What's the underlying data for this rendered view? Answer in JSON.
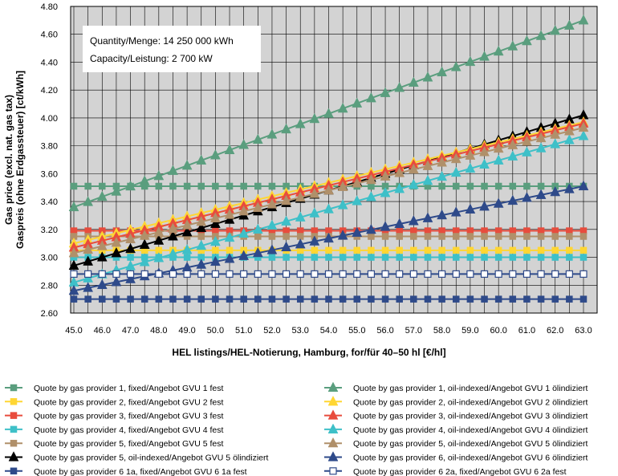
{
  "chart_data": {
    "type": "line",
    "title": "",
    "xlabel": "HEL listings/HEL-Notierung, Hamburg, for/für 40–50 hl [€/hl]",
    "ylabel_line1": "Gas price (excl. nat. gas tax)",
    "ylabel_line2": "Gaspreis (ohne Erdgassteuer) [ct/kWh]",
    "xlim": [
      45.0,
      63.0
    ],
    "ylim": [
      2.6,
      4.8
    ],
    "x_ticks": [
      "45.0",
      "46.0",
      "47.0",
      "48.0",
      "49.0",
      "50.0",
      "51.0",
      "52.0",
      "53.0",
      "54.0",
      "55.0",
      "56.0",
      "57.0",
      "58.0",
      "59.0",
      "60.0",
      "61.0",
      "62.0",
      "63.0"
    ],
    "y_ticks": [
      "2.60",
      "2.80",
      "3.00",
      "3.20",
      "3.40",
      "3.60",
      "3.80",
      "4.00",
      "4.20",
      "4.40",
      "4.60",
      "4.80"
    ],
    "x_step": 0.5,
    "grid": true,
    "info_box": {
      "quantity": "Quantity/Menge: 14 250 000 kWh",
      "capacity": "Capacity/Leistung: 2 700 kW"
    },
    "series": [
      {
        "name": "Quote by gas provider 1, fixed/Angebot GVU 1 fest",
        "color": "#5a9e7e",
        "marker": "square",
        "start": 3.51,
        "end": 3.51
      },
      {
        "name": "Quote by gas provider 2, fixed/Angebot GVU 2 fest",
        "color": "#ffd633",
        "marker": "square",
        "start": 3.05,
        "end": 3.05
      },
      {
        "name": "Quote by gas provider 3, fixed/Angebot GVU 3 fest",
        "color": "#e84c3d",
        "marker": "square",
        "start": 3.19,
        "end": 3.19
      },
      {
        "name": "Quote by gas provider 4, fixed/Angebot GVU 4 fest",
        "color": "#3ec0c8",
        "marker": "square",
        "start": 3.0,
        "end": 3.0
      },
      {
        "name": "Quote by gas provider 5, fixed/Angebot GVU 5 fest",
        "color": "#b0906a",
        "marker": "square",
        "start": 3.15,
        "end": 3.15
      },
      {
        "name": "Quote by gas provider 5, oil-indexed/Angebot GVU 5 ölindiziert",
        "color": "#000000",
        "marker": "triangle",
        "start": 2.94,
        "end": 4.02
      },
      {
        "name": "Quote by gas provider 6 1a, fixed/Angebot GVU 6 1a fest",
        "color": "#2e4a8a",
        "marker": "square",
        "start": 2.7,
        "end": 2.7
      },
      {
        "name": "Quote by gas provider 1, oil-indexed/Angebot GVU 1 ölindiziert",
        "color": "#5a9e7e",
        "marker": "triangle",
        "start": 3.36,
        "end": 4.7
      },
      {
        "name": "Quote by gas provider 2, oil-indexed/Angebot GVU 2 ölindiziert",
        "color": "#ffd633",
        "marker": "triangle",
        "start": 3.1,
        "end": 3.97
      },
      {
        "name": "Quote by gas provider 3, oil-indexed/Angebot GVU 3 ölindiziert",
        "color": "#e84c3d",
        "marker": "triangle",
        "start": 3.07,
        "end": 3.96
      },
      {
        "name": "Quote by gas provider 4, oil-indexed/Angebot GVU 4 ölindiziert",
        "color": "#3ec0c8",
        "marker": "triangle",
        "start": 2.82,
        "end": 3.87
      },
      {
        "name": "Quote by gas provider 5, oil-indexed/Angebot GVU 5 ölindiziert",
        "color": "#b0906a",
        "marker": "triangle",
        "start": 3.03,
        "end": 3.93
      },
      {
        "name": "Quote by gas provider 6, oil-indexed/Angebot GVU 6 ölindiziert",
        "color": "#2e4a8a",
        "marker": "triangle",
        "start": 2.76,
        "end": 3.51
      },
      {
        "name": "Quote by gas provider 6 2a, fixed/Angebot GVU 6 2a fest",
        "color": "#2e4a8a",
        "marker": "hollow-square",
        "start": 2.88,
        "end": 2.88
      }
    ]
  }
}
